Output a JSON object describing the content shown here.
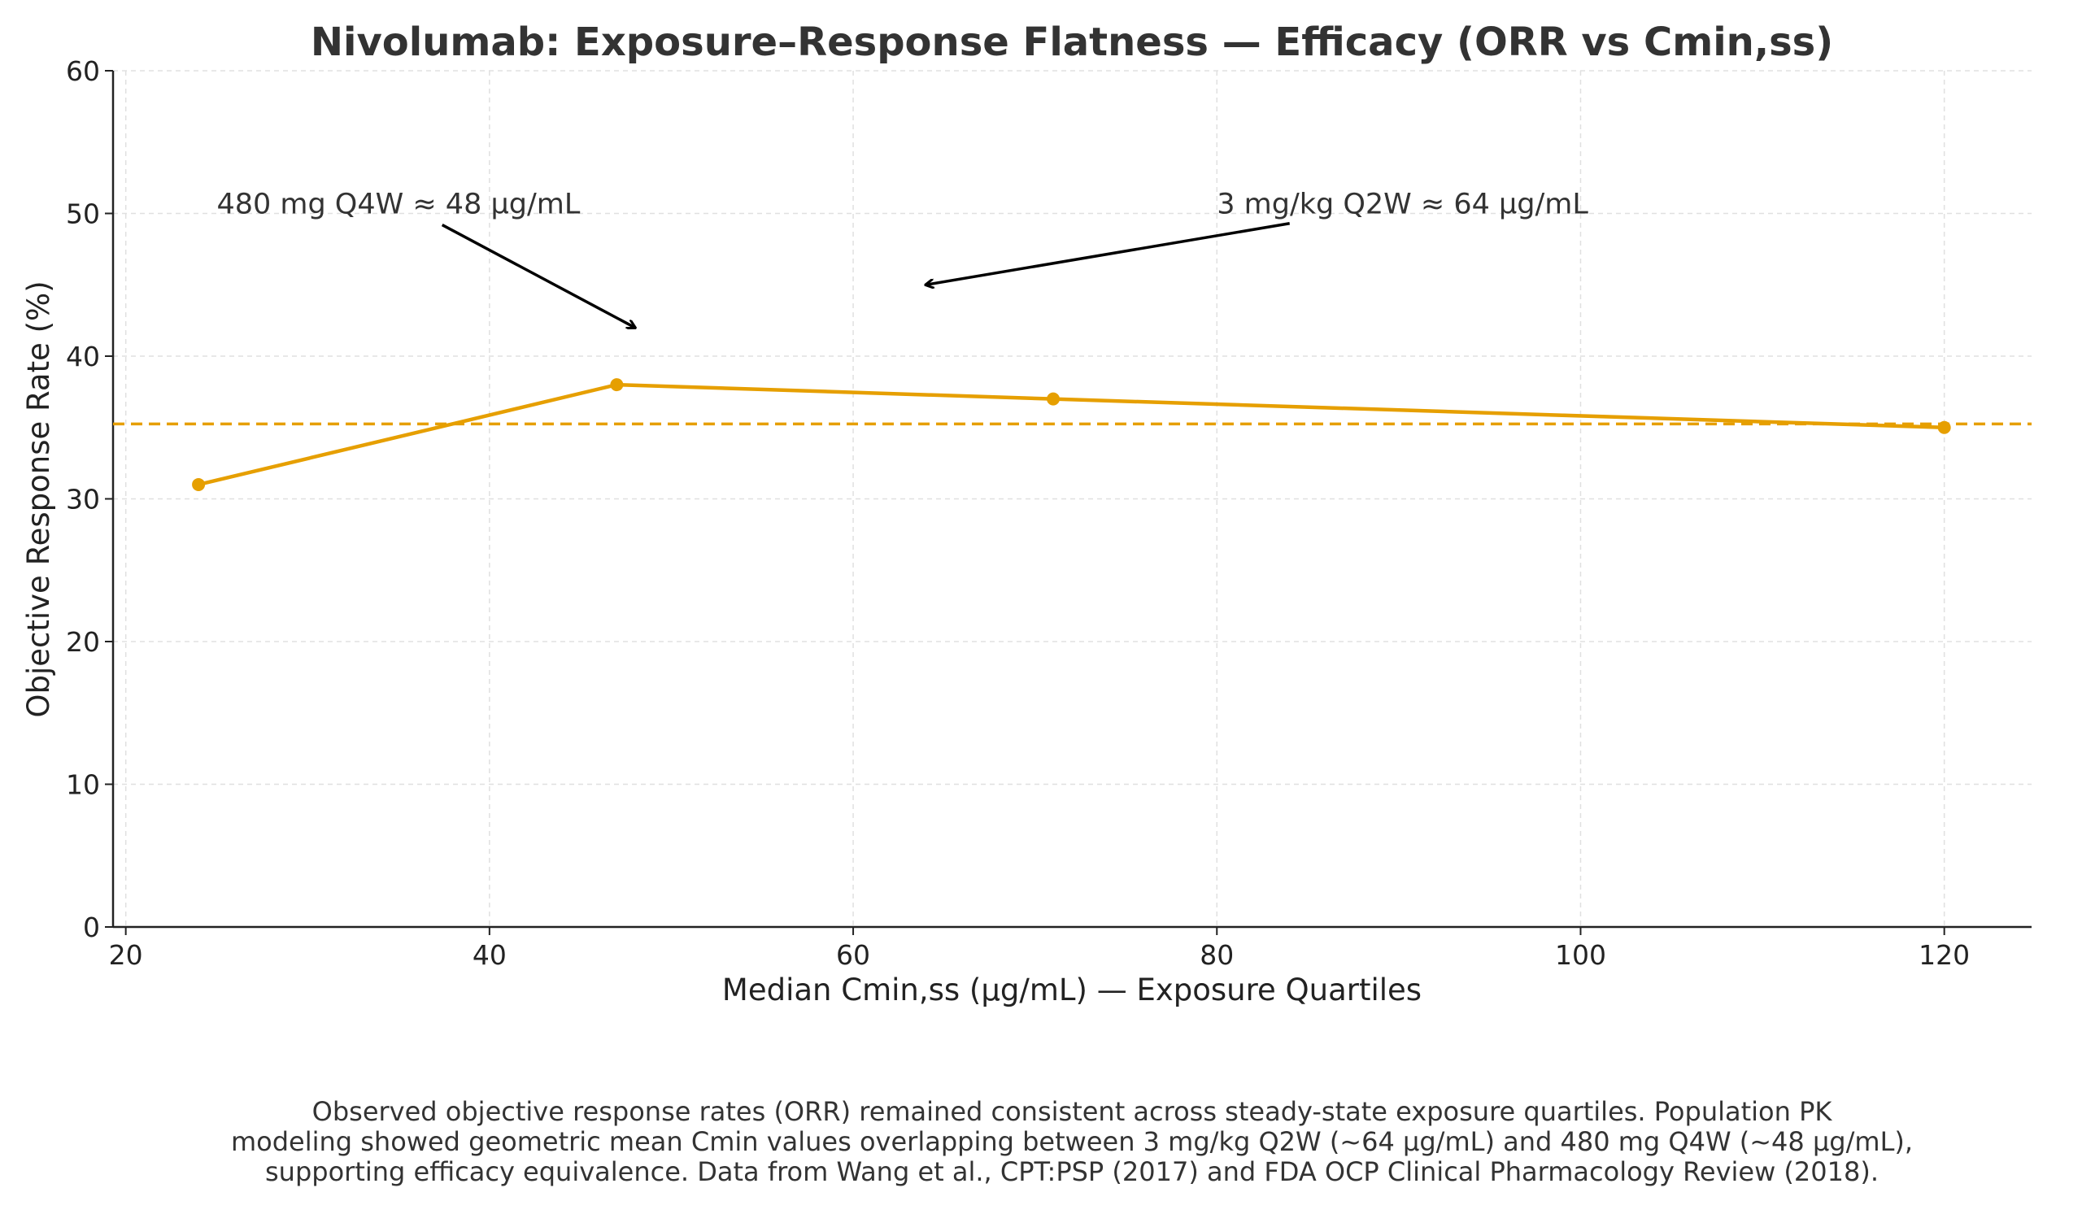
{
  "chart_data": {
    "type": "line",
    "title": "Nivolumab: Exposure–Response Flatness — Efficacy (ORR vs Cmin,ss)",
    "xlabel": "Median Cmin,ss (µg/mL) — Exposure Quartiles",
    "ylabel": "Objective Response Rate (%)",
    "xlim": [
      19.3,
      124.8
    ],
    "ylim": [
      0,
      60
    ],
    "xticks": [
      20,
      40,
      60,
      80,
      100,
      120
    ],
    "yticks": [
      0,
      10,
      20,
      30,
      40,
      50,
      60
    ],
    "grid": true,
    "series": [
      {
        "x": [
          24,
          47,
          71,
          120
        ],
        "y": [
          31,
          38,
          37,
          35
        ],
        "color": "#E69F00",
        "marker": "circle"
      }
    ],
    "reference_line": {
      "y": 35.25,
      "style": "dashed",
      "color": "#E69F00"
    },
    "annotations": [
      {
        "text": "480 mg Q4W ≈ 48 µg/mL",
        "text_at": [
          25,
          50
        ],
        "arrow_from": [
          37.4,
          49.2
        ],
        "arrow_to": [
          48,
          42
        ]
      },
      {
        "text": "3 mg/kg Q2W ≈ 64 µg/mL",
        "text_at": [
          80,
          50
        ],
        "arrow_from": [
          84,
          49.3
        ],
        "arrow_to": [
          64,
          45
        ]
      }
    ],
    "footnote": [
      "Observed objective response rates (ORR) remained consistent across steady-state exposure quartiles. Population PK",
      "modeling showed geometric mean Cmin values overlapping between 3 mg/kg Q2W (~64 µg/mL) and 480 mg Q4W (~48 µg/mL),",
      "supporting efficacy equivalence. Data from Wang et al., CPT:PSP (2017) and FDA OCP Clinical Pharmacology Review (2018)."
    ]
  }
}
